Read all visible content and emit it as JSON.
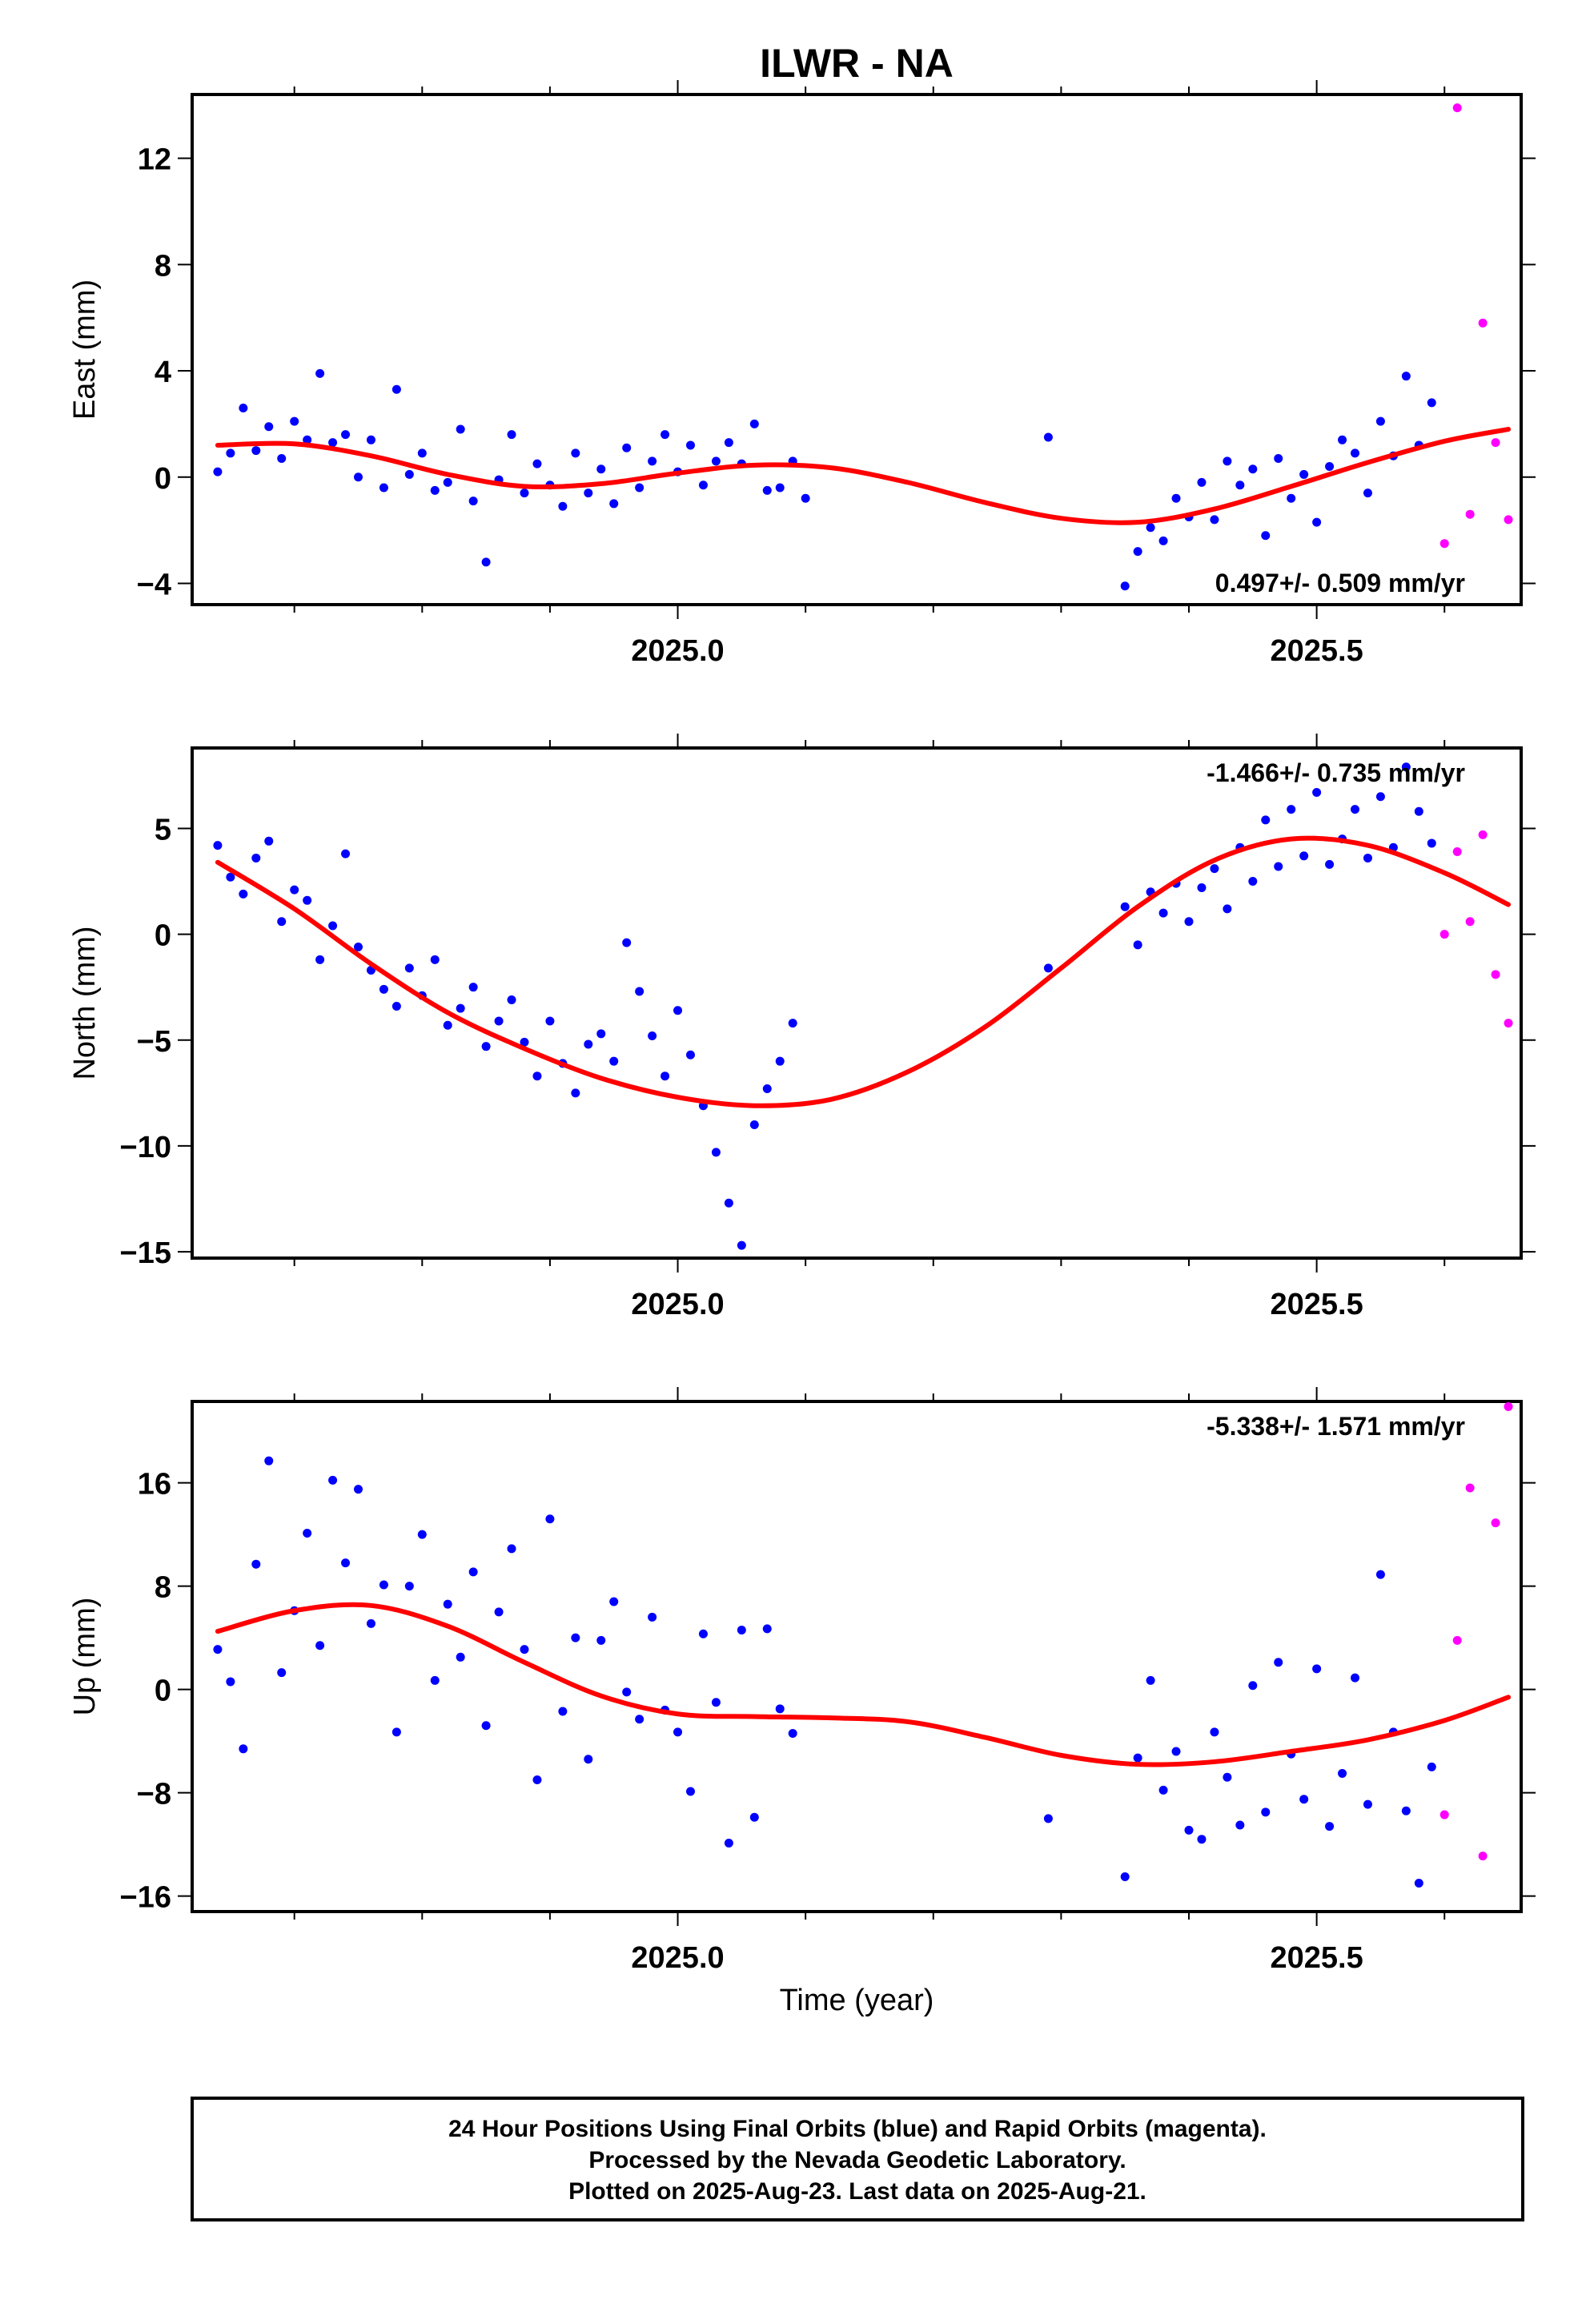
{
  "title": "ILWR - NA",
  "footer_lines": [
    "24 Hour Positions Using Final Orbits (blue) and Rapid Orbits (magenta).",
    "Processed by the Nevada Geodetic Laboratory.",
    "Plotted on 2025-Aug-23. Last data on 2025-Aug-21."
  ],
  "colors": {
    "final": "#0000ff",
    "rapid": "#ff00ff",
    "model": "#ff0000",
    "axis": "#000000"
  },
  "chart_data": [
    {
      "type": "scatter",
      "panel": "east",
      "ylabel": "East (mm)",
      "xlabel": "",
      "xlim": [
        2024.62,
        2025.66
      ],
      "ylim": [
        -4.8,
        14.4
      ],
      "yticks": [
        -4,
        0,
        4,
        8,
        12
      ],
      "ytick_labels": [
        "−4",
        "0",
        "4",
        "8",
        "12"
      ],
      "xticks": [
        2025.0,
        2025.5
      ],
      "xtick_labels": [
        "2025.0",
        "2025.5"
      ],
      "rate_label": "0.497+/- 0.509 mm/yr",
      "rate_label_position": "bottom-right",
      "model": {
        "name": "",
        "x": [
          2024.64,
          2024.7,
          2024.76,
          2024.82,
          2024.88,
          2024.94,
          2025.0,
          2025.06,
          2025.12,
          2025.18,
          2025.24,
          2025.3,
          2025.36,
          2025.42,
          2025.48,
          2025.54,
          2025.6,
          2025.65
        ],
        "y": [
          1.2,
          1.25,
          0.8,
          0.1,
          -0.35,
          -0.25,
          0.15,
          0.45,
          0.35,
          -0.2,
          -0.95,
          -1.55,
          -1.7,
          -1.2,
          -0.35,
          0.55,
          1.35,
          1.8
        ]
      },
      "series": [
        {
          "name": "Final Orbits",
          "x": [
            2024.64,
            2024.65,
            2024.66,
            2024.67,
            2024.68,
            2024.69,
            2024.7,
            2024.71,
            2024.72,
            2024.73,
            2024.74,
            2024.75,
            2024.76,
            2024.77,
            2024.78,
            2024.79,
            2024.8,
            2024.81,
            2024.82,
            2024.83,
            2024.84,
            2024.85,
            2024.86,
            2024.87,
            2024.88,
            2024.89,
            2024.9,
            2024.91,
            2024.92,
            2024.93,
            2024.94,
            2024.95,
            2024.96,
            2024.97,
            2024.98,
            2024.99,
            2025.0,
            2025.01,
            2025.02,
            2025.03,
            2025.04,
            2025.05,
            2025.06,
            2025.07,
            2025.08,
            2025.09,
            2025.1,
            2025.29,
            2025.35,
            2025.36,
            2025.37,
            2025.38,
            2025.39,
            2025.4,
            2025.41,
            2025.42,
            2025.43,
            2025.44,
            2025.45,
            2025.46,
            2025.47,
            2025.48,
            2025.49,
            2025.5,
            2025.51,
            2025.52,
            2025.53,
            2025.54,
            2025.55,
            2025.56,
            2025.57,
            2025.58,
            2025.59
          ],
          "y": [
            0.2,
            0.9,
            2.6,
            1.0,
            1.9,
            0.7,
            2.1,
            1.4,
            3.9,
            1.3,
            1.6,
            0.0,
            1.4,
            -0.4,
            3.3,
            0.1,
            0.9,
            -0.5,
            -0.2,
            1.8,
            -0.9,
            -3.2,
            -0.1,
            1.6,
            -0.6,
            0.5,
            -0.3,
            -1.1,
            0.9,
            -0.6,
            0.3,
            -1.0,
            1.1,
            -0.4,
            0.6,
            1.6,
            0.2,
            1.2,
            -0.3,
            0.6,
            1.3,
            0.5,
            2.0,
            -0.5,
            -0.4,
            0.6,
            -0.8,
            1.5,
            -4.1,
            -2.8,
            -1.9,
            -2.4,
            -0.8,
            -1.5,
            -0.2,
            -1.6,
            0.6,
            -0.3,
            0.3,
            -2.2,
            0.7,
            -0.8,
            0.1,
            -1.7,
            0.4,
            1.4,
            0.9,
            -0.6,
            2.1,
            0.8,
            3.8,
            1.2,
            2.8
          ]
        },
        {
          "name": "Rapid Orbits",
          "x": [
            2025.6,
            2025.61,
            2025.62,
            2025.63,
            2025.64,
            2025.65
          ],
          "y": [
            -2.5,
            13.9,
            -1.4,
            5.8,
            1.3,
            -1.6
          ]
        }
      ]
    },
    {
      "type": "scatter",
      "panel": "north",
      "ylabel": "North (mm)",
      "xlabel": "",
      "xlim": [
        2024.62,
        2025.66
      ],
      "ylim": [
        -15.3,
        8.8
      ],
      "yticks": [
        -15,
        -10,
        -5,
        0,
        5
      ],
      "ytick_labels": [
        "−15",
        "−10",
        "−5",
        "0",
        "5"
      ],
      "xticks": [
        2025.0,
        2025.5
      ],
      "xtick_labels": [
        "2025.0",
        "2025.5"
      ],
      "rate_label": "-1.466+/- 0.735 mm/yr",
      "rate_label_position": "top-right",
      "model": {
        "name": "",
        "x": [
          2024.64,
          2024.7,
          2024.76,
          2024.82,
          2024.88,
          2024.94,
          2025.0,
          2025.06,
          2025.12,
          2025.18,
          2025.24,
          2025.3,
          2025.36,
          2025.42,
          2025.48,
          2025.54,
          2025.6,
          2025.65
        ],
        "y": [
          3.4,
          1.2,
          -1.4,
          -3.7,
          -5.4,
          -6.8,
          -7.7,
          -8.1,
          -7.8,
          -6.5,
          -4.4,
          -1.6,
          1.3,
          3.5,
          4.5,
          4.2,
          2.9,
          1.4
        ]
      },
      "series": [
        {
          "name": "Final Orbits",
          "x": [
            2024.64,
            2024.65,
            2024.66,
            2024.67,
            2024.68,
            2024.69,
            2024.7,
            2024.71,
            2024.72,
            2024.73,
            2024.74,
            2024.75,
            2024.76,
            2024.77,
            2024.78,
            2024.79,
            2024.8,
            2024.81,
            2024.82,
            2024.83,
            2024.84,
            2024.85,
            2024.86,
            2024.87,
            2024.88,
            2024.89,
            2024.9,
            2024.91,
            2024.92,
            2024.93,
            2024.94,
            2024.95,
            2024.96,
            2024.97,
            2024.98,
            2024.99,
            2025.0,
            2025.01,
            2025.02,
            2025.03,
            2025.04,
            2025.05,
            2025.06,
            2025.07,
            2025.08,
            2025.09,
            2025.29,
            2025.35,
            2025.36,
            2025.37,
            2025.38,
            2025.39,
            2025.4,
            2025.41,
            2025.42,
            2025.43,
            2025.44,
            2025.45,
            2025.46,
            2025.47,
            2025.48,
            2025.49,
            2025.5,
            2025.51,
            2025.52,
            2025.53,
            2025.54,
            2025.55,
            2025.56,
            2025.57,
            2025.58,
            2025.59
          ],
          "y": [
            4.2,
            2.7,
            1.9,
            3.6,
            4.4,
            0.6,
            2.1,
            1.6,
            -1.2,
            0.4,
            3.8,
            -0.6,
            -1.7,
            -2.6,
            -3.4,
            -1.6,
            -2.9,
            -1.2,
            -4.3,
            -3.5,
            -2.5,
            -5.3,
            -4.1,
            -3.1,
            -5.1,
            -6.7,
            -4.1,
            -6.1,
            -7.5,
            -5.2,
            -4.7,
            -6.0,
            -0.4,
            -2.7,
            -4.8,
            -6.7,
            -3.6,
            -5.7,
            -8.1,
            -10.3,
            -12.7,
            -14.7,
            -9.0,
            -7.3,
            -6.0,
            -4.2,
            -1.6,
            1.3,
            -0.5,
            2.0,
            1.0,
            2.4,
            0.6,
            2.2,
            3.1,
            1.2,
            4.1,
            2.5,
            5.4,
            3.2,
            5.9,
            3.7,
            6.7,
            3.3,
            4.5,
            5.9,
            3.6,
            6.5,
            4.1,
            7.9,
            5.8,
            4.3
          ]
        },
        {
          "name": "Rapid Orbits",
          "x": [
            2025.6,
            2025.61,
            2025.62,
            2025.63,
            2025.64,
            2025.65
          ],
          "y": [
            0.0,
            3.9,
            0.6,
            4.7,
            -1.9,
            -4.2
          ]
        }
      ]
    },
    {
      "type": "scatter",
      "panel": "up",
      "ylabel": "Up (mm)",
      "xlabel": "Time (year)",
      "xlim": [
        2024.62,
        2025.66
      ],
      "ylim": [
        -17.2,
        22.3
      ],
      "yticks": [
        -16,
        -8,
        0,
        8,
        16
      ],
      "ytick_labels": [
        "−16",
        "−8",
        "0",
        "8",
        "16"
      ],
      "xticks": [
        2025.0,
        2025.5
      ],
      "xtick_labels": [
        "2025.0",
        "2025.5"
      ],
      "rate_label": "-5.338+/- 1.571 mm/yr",
      "rate_label_position": "top-right",
      "model": {
        "name": "",
        "x": [
          2024.64,
          2024.7,
          2024.76,
          2024.82,
          2024.88,
          2024.94,
          2025.0,
          2025.06,
          2025.12,
          2025.18,
          2025.24,
          2025.3,
          2025.36,
          2025.42,
          2025.48,
          2025.54,
          2025.6,
          2025.65
        ],
        "y": [
          4.5,
          6.1,
          6.5,
          4.9,
          2.1,
          -0.5,
          -1.9,
          -2.1,
          -2.2,
          -2.5,
          -3.7,
          -5.1,
          -5.8,
          -5.6,
          -4.8,
          -3.9,
          -2.4,
          -0.6
        ]
      },
      "series": [
        {
          "name": "Final Orbits",
          "x": [
            2024.64,
            2024.65,
            2024.66,
            2024.67,
            2024.68,
            2024.69,
            2024.7,
            2024.71,
            2024.72,
            2024.73,
            2024.74,
            2024.75,
            2024.76,
            2024.77,
            2024.78,
            2024.79,
            2024.8,
            2024.81,
            2024.82,
            2024.83,
            2024.84,
            2024.85,
            2024.86,
            2024.87,
            2024.88,
            2024.89,
            2024.9,
            2024.91,
            2024.92,
            2024.93,
            2024.94,
            2024.95,
            2024.96,
            2024.97,
            2024.98,
            2024.99,
            2025.0,
            2025.01,
            2025.02,
            2025.03,
            2025.04,
            2025.05,
            2025.06,
            2025.07,
            2025.08,
            2025.09,
            2025.29,
            2025.35,
            2025.36,
            2025.37,
            2025.38,
            2025.39,
            2025.4,
            2025.41,
            2025.42,
            2025.43,
            2025.44,
            2025.45,
            2025.46,
            2025.47,
            2025.48,
            2025.49,
            2025.5,
            2025.51,
            2025.52,
            2025.53,
            2025.54,
            2025.55,
            2025.56,
            2025.57,
            2025.58,
            2025.59
          ],
          "y": [
            3.1,
            0.6,
            -4.6,
            9.7,
            17.7,
            1.3,
            6.1,
            12.1,
            3.4,
            16.2,
            9.8,
            15.5,
            5.1,
            8.1,
            -3.3,
            8.0,
            12.0,
            0.7,
            6.6,
            2.5,
            9.1,
            -2.8,
            6.0,
            10.9,
            3.1,
            -7.0,
            13.2,
            -1.7,
            4.0,
            -5.4,
            3.8,
            6.8,
            -0.2,
            -2.3,
            5.6,
            -1.6,
            -3.3,
            -7.9,
            4.3,
            -1.0,
            -11.9,
            4.6,
            -9.9,
            4.7,
            -1.5,
            -3.4,
            -10.0,
            -14.5,
            -5.3,
            0.7,
            -7.8,
            -4.8,
            -10.9,
            -11.6,
            -3.3,
            -6.8,
            -10.5,
            0.3,
            -9.5,
            2.1,
            -5.0,
            -8.5,
            1.6,
            -10.6,
            -6.5,
            0.9,
            -8.9,
            8.9,
            -3.3,
            -9.4,
            -15.0,
            -6.0
          ]
        },
        {
          "name": "Rapid Orbits",
          "x": [
            2025.6,
            2025.61,
            2025.62,
            2025.63,
            2025.64,
            2025.65
          ],
          "y": [
            -9.7,
            3.8,
            15.6,
            -12.9,
            12.9,
            21.9
          ]
        }
      ]
    }
  ]
}
